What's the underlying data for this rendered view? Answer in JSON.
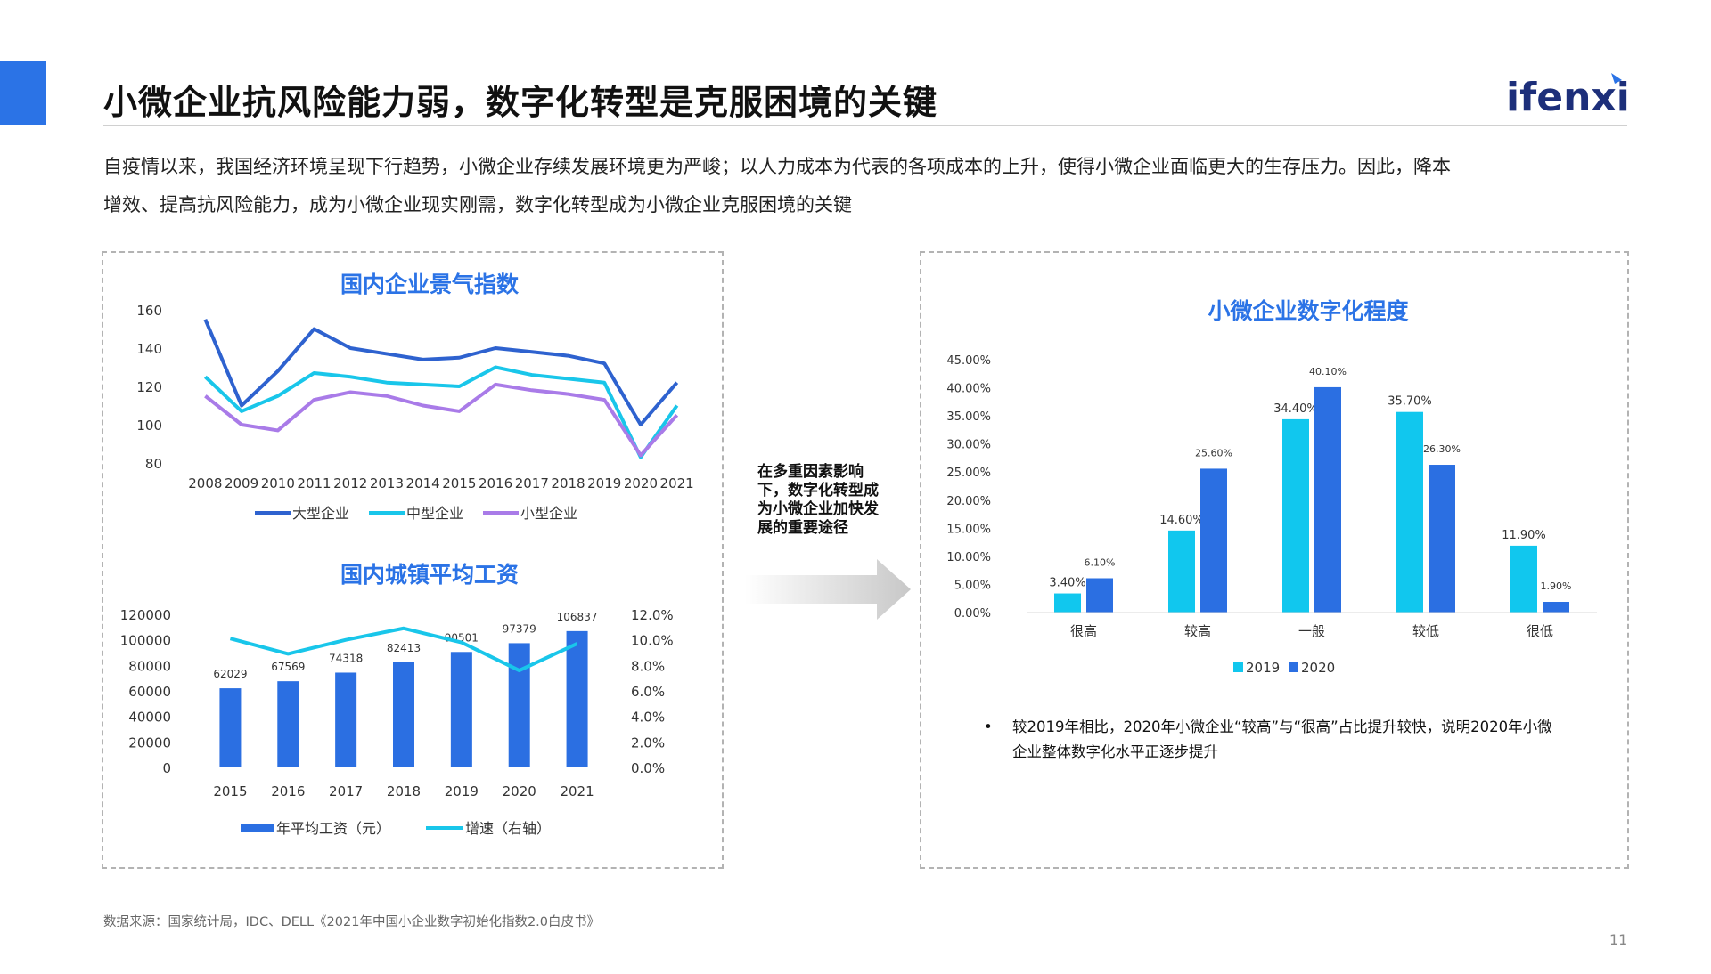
{
  "header": {
    "title": "小微企业抗风险能力弱，数字化转型是克服困境的关键",
    "logo": "ifenxi",
    "intro_line1": "自疫情以来，我国经济环境呈现下行趋势，小微企业存续发展环境更为严峻；以人力成本为代表的各项成本的上升，使得小微企业面临更大的生存压力。因此，降本",
    "intro_line2": "增效、提高抗风险能力，成为小微企业现实刚需，数字化转型成为小微企业克服困境的关键",
    "accent_color": "#2b73e6"
  },
  "chart_data": [
    {
      "type": "line",
      "title": "国内企业景气指数",
      "x": [
        "2008",
        "2009",
        "2010",
        "2011",
        "2012",
        "2013",
        "2014",
        "2015",
        "2016",
        "2017",
        "2018",
        "2019",
        "2020",
        "2021"
      ],
      "ylim": [
        80,
        160
      ],
      "yticks": [
        "160",
        "140",
        "120",
        "100",
        "80"
      ],
      "series": [
        {
          "name": "大型企业",
          "color": "#2e62cf",
          "values": [
            155,
            110,
            128,
            150,
            140,
            137,
            134,
            135,
            140,
            138,
            136,
            132,
            100,
            122
          ]
        },
        {
          "name": "中型企业",
          "color": "#19c6ea",
          "values": [
            125,
            107,
            115,
            127,
            125,
            122,
            121,
            120,
            130,
            126,
            124,
            122,
            83,
            110
          ]
        },
        {
          "name": "小型企业",
          "color": "#a97be8",
          "values": [
            115,
            100,
            97,
            113,
            117,
            115,
            110,
            107,
            121,
            118,
            116,
            113,
            84,
            105
          ]
        }
      ]
    },
    {
      "type": "bar",
      "title": "国内城镇平均工资",
      "categories": [
        "2015",
        "2016",
        "2017",
        "2018",
        "2019",
        "2020",
        "2021"
      ],
      "ylim": [
        0,
        120000
      ],
      "yticks_left": [
        "120000",
        "100000",
        "80000",
        "60000",
        "40000",
        "20000",
        "0"
      ],
      "yticks_right": [
        "12.0%",
        "10.0%",
        "8.0%",
        "6.0%",
        "4.0%",
        "2.0%",
        "0.0%"
      ],
      "y2lim": [
        0,
        12
      ],
      "series": [
        {
          "name": "年平均工资（元）",
          "color": "#2b6fe2",
          "values": [
            62029,
            67569,
            74318,
            82413,
            90501,
            97379,
            106837
          ],
          "labels": [
            "62029",
            "67569",
            "74318",
            "82413",
            "90501",
            "97379",
            "106837"
          ]
        },
        {
          "name": "增速（右轴）",
          "color": "#19c6ea",
          "axis": "right",
          "values": [
            10.1,
            8.9,
            10.0,
            10.9,
            9.8,
            7.6,
            9.7
          ]
        }
      ]
    },
    {
      "type": "bar",
      "title": "小微企业数字化程度",
      "categories": [
        "很高",
        "较高",
        "一般",
        "较低",
        "很低"
      ],
      "ylim": [
        0,
        45
      ],
      "yticks": [
        "45.00%",
        "40.00%",
        "35.00%",
        "30.00%",
        "25.00%",
        "20.00%",
        "15.00%",
        "10.00%",
        "5.00%",
        "0.00%"
      ],
      "series": [
        {
          "name": "2019",
          "color": "#11c7ee",
          "values": [
            3.4,
            14.6,
            34.4,
            35.7,
            11.9
          ],
          "labels": [
            "3.40%",
            "14.60%",
            "34.40%",
            "35.70%",
            "11.90%"
          ]
        },
        {
          "name": "2020",
          "color": "#2b6fe2",
          "values": [
            6.1,
            25.6,
            40.1,
            26.3,
            1.9
          ],
          "labels": [
            "6.10%",
            "25.60%",
            "40.10%",
            "26.30%",
            "1.90%"
          ]
        }
      ]
    }
  ],
  "middle_note": "在多重因素影响下，数字化转型成为小微企业加快发展的重要途径",
  "bullet": {
    "dot": "•",
    "line1": "较2019年相比，2020年小微企业“较高”与“很高”占比提升较快，说明2020年小微",
    "line2": "企业整体数字化水平正逐步提升"
  },
  "footer": {
    "source": "数据来源：国家统计局，IDC、DELL《2021年中国小企业数字初始化指数2.0白皮书》",
    "page": "11"
  }
}
